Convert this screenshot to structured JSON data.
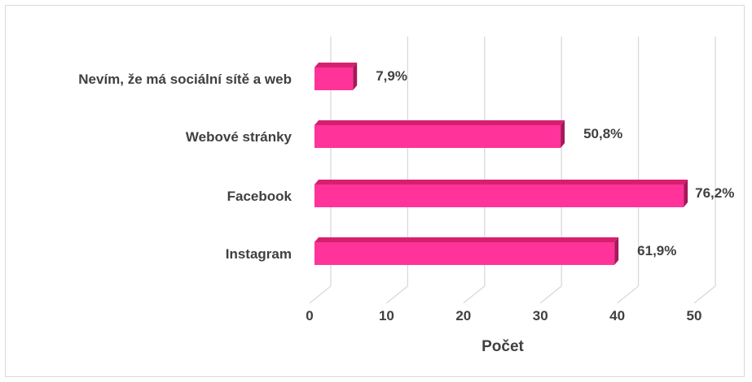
{
  "chart_data": {
    "type": "bar",
    "orientation": "horizontal",
    "style": "3d",
    "categories": [
      "Nevím, že má sociální sítě a web",
      "Webové stránky",
      "Facebook",
      "Instagram"
    ],
    "values": [
      5,
      32,
      48,
      39
    ],
    "data_labels": [
      "7,9%",
      "50,8%",
      "76,2%",
      "61,9%"
    ],
    "xticks": [
      "0",
      "10",
      "20",
      "30",
      "40",
      "50"
    ],
    "xlim": [
      0,
      50
    ],
    "xlabel": "Počet",
    "grid": true,
    "legend": "none",
    "colors": {
      "bar_front": "#ff3399",
      "bar_top": "#d6206f",
      "bar_side": "#a8175a",
      "gridline": "#d9d9d9",
      "text": "#404040"
    }
  }
}
